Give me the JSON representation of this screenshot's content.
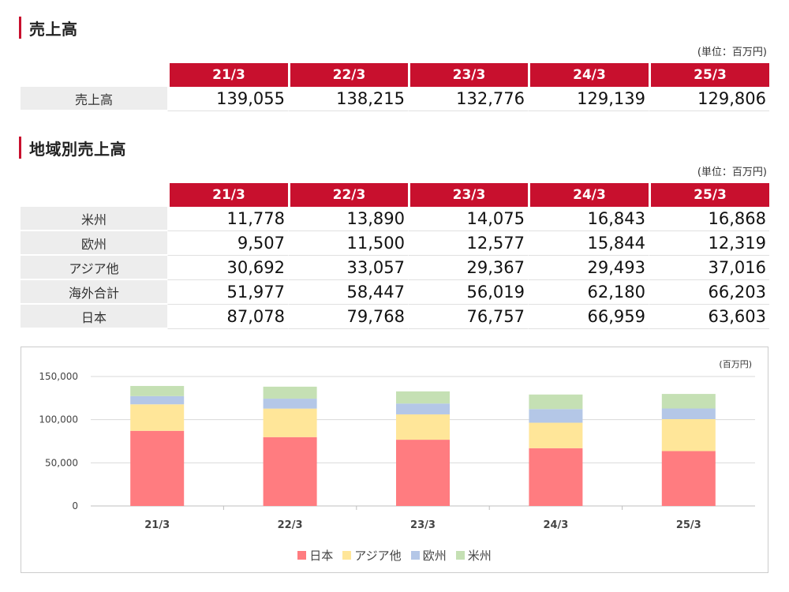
{
  "sales": {
    "title": "売上高",
    "unit": "(単位：百万円)",
    "periods": [
      "21/3",
      "22/3",
      "23/3",
      "24/3",
      "25/3"
    ],
    "row_label": "売上高",
    "values": [
      "139,055",
      "138,215",
      "132,776",
      "129,139",
      "129,806"
    ]
  },
  "regional": {
    "title": "地域別売上高",
    "unit": "(単位：百万円)",
    "periods": [
      "21/3",
      "22/3",
      "23/3",
      "24/3",
      "25/3"
    ],
    "rows": [
      {
        "label": "米州",
        "values": [
          "11,778",
          "13,890",
          "14,075",
          "16,843",
          "16,868"
        ]
      },
      {
        "label": "欧州",
        "values": [
          "9,507",
          "11,500",
          "12,577",
          "15,844",
          "12,319"
        ]
      },
      {
        "label": "アジア他",
        "values": [
          "30,692",
          "33,057",
          "29,367",
          "29,493",
          "37,016"
        ]
      },
      {
        "label": "海外合計",
        "values": [
          "51,977",
          "58,447",
          "56,019",
          "62,180",
          "66,203"
        ]
      },
      {
        "label": "日本",
        "values": [
          "87,078",
          "79,768",
          "76,757",
          "66,959",
          "63,603"
        ]
      }
    ]
  },
  "chart_data": {
    "type": "bar",
    "stacked": true,
    "unit_label": "(百万円)",
    "categories": [
      "21/3",
      "22/3",
      "23/3",
      "24/3",
      "25/3"
    ],
    "ylim": [
      0,
      150000
    ],
    "yticks": [
      0,
      50000,
      100000,
      150000
    ],
    "ytick_labels": [
      "0",
      "50,000",
      "100,000",
      "150,000"
    ],
    "grid": true,
    "legend_position": "bottom",
    "series": [
      {
        "name": "日本",
        "color": "#ff7c80",
        "values": [
          87078,
          79768,
          76757,
          66959,
          63603
        ]
      },
      {
        "name": "アジア他",
        "color": "#ffe699",
        "values": [
          30692,
          33057,
          29367,
          29493,
          37016
        ]
      },
      {
        "name": "欧州",
        "color": "#b4c7e7",
        "values": [
          9507,
          11500,
          12577,
          15844,
          12319
        ]
      },
      {
        "name": "米州",
        "color": "#c5e0b4",
        "values": [
          11778,
          13890,
          14075,
          16843,
          16868
        ]
      }
    ]
  }
}
